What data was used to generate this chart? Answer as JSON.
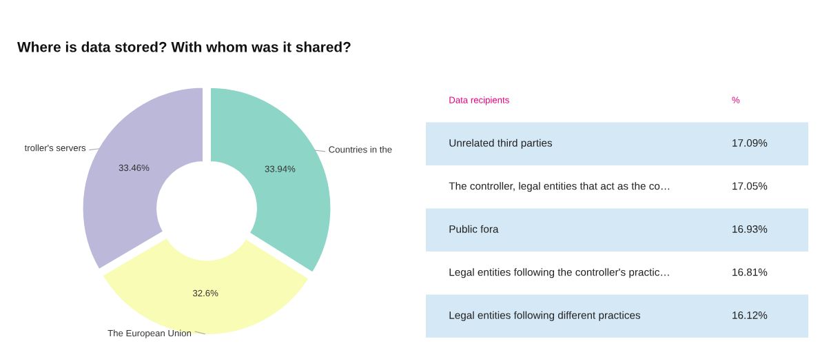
{
  "chart_data": [
    {
      "type": "donut",
      "title": "Where is data stored? With whom was it shared?",
      "categories": [
        "Countries in the",
        "The European Union",
        "troller's servers"
      ],
      "values": [
        33.94,
        32.6,
        33.46
      ],
      "value_labels": [
        "33.94%",
        "32.6%",
        "33.46%"
      ],
      "colors": [
        "#8dd5c6",
        "#f8fcb4",
        "#bcb8da"
      ]
    },
    {
      "type": "other",
      "annotations": [
        "Data recipients",
        "%"
      ],
      "categories": [
        "Unrelated third parties",
        "The controller, legal entities that act as the co…",
        "Public fora",
        "Legal entities following the controller's practic…",
        "Legal entities following different practices"
      ],
      "value_labels": [
        "17.09%",
        "17.05%",
        "16.93%",
        "16.81%",
        "16.12%"
      ],
      "colors": [
        "#d4e8f5",
        "#ffffff",
        "#d4e8f5",
        "#ffffff",
        "#d4e8f5"
      ]
    }
  ]
}
